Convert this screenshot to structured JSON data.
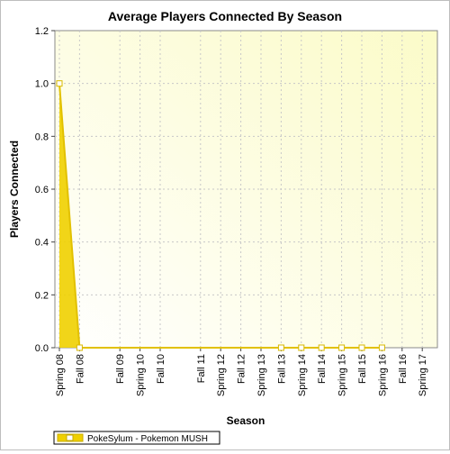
{
  "chart_data": {
    "type": "area",
    "title": "Average Players Connected By Season",
    "xlabel": "Season",
    "ylabel": "Players Connected",
    "ylim": [
      0,
      1.2
    ],
    "yticks": [
      "0.0",
      "0.2",
      "0.4",
      "0.6",
      "0.8",
      "1.0",
      "1.2"
    ],
    "categories": [
      "Spring 08",
      "Fall 08",
      "Spring 09",
      "Fall 09",
      "Spring 10",
      "Fall 10",
      "Spring 11",
      "Fall 11",
      "Spring 12",
      "Fall 12",
      "Spring 13",
      "Fall 13",
      "Spring 14",
      "Fall 14",
      "Spring 15",
      "Fall 15",
      "Spring 16",
      "Fall 16",
      "Spring 17"
    ],
    "tick_labels": [
      "Spring 08",
      "Fall 08",
      "Fall 09",
      "Spring 10",
      "Fall 10",
      "Fall 11",
      "Spring 12",
      "Fall 12",
      "Spring 13",
      "Fall 13",
      "Fall 14",
      "Spring 14",
      "Spring 15",
      "Fall 15",
      "Spring 16",
      "Fall 16",
      "Spring 17"
    ],
    "series": [
      {
        "name": "PokeSylum - Pokemon MUSH",
        "color": "#f0d000",
        "points": [
          {
            "x": "Spring 08",
            "y": 1.0
          },
          {
            "x": "Fall 08",
            "y": 0.0
          },
          {
            "x": "Fall 13",
            "y": 0.0
          },
          {
            "x": "Spring 14",
            "y": 0.0
          },
          {
            "x": "Fall 14",
            "y": 0.0
          },
          {
            "x": "Spring 15",
            "y": 0.0
          },
          {
            "x": "Fall 15",
            "y": 0.0
          },
          {
            "x": "Spring 16",
            "y": 0.0
          }
        ]
      }
    ],
    "legend": "bottom-left",
    "grid": true
  }
}
